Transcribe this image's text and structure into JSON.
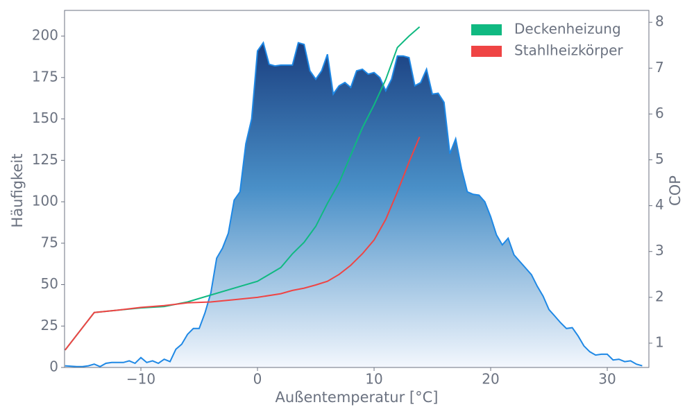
{
  "chart_data": {
    "type": "combo",
    "x_label": "Außentemperatur [°C]",
    "y_label": "Häufigkeit",
    "y2_label": "COP",
    "xlim": [
      -16.55,
      33.57
    ],
    "xticks": [
      {
        "value": -10,
        "label": "−10"
      },
      0,
      10,
      20,
      30
    ],
    "ylim": [
      0,
      215.5
    ],
    "yticks": [
      0,
      25,
      50,
      75,
      100,
      125,
      150,
      175,
      200
    ],
    "y2lim": [
      0.47,
      8.26
    ],
    "y2ticks": [
      1,
      2,
      3,
      4,
      5,
      6,
      7,
      8
    ],
    "legend": "upper right",
    "series": [
      {
        "type": "area",
        "color": "#1e88e5",
        "x": [
          -16.5,
          -15.5,
          -15,
          -14.5,
          -14,
          -13.5,
          -13,
          -12.5,
          -12,
          -11.5,
          -11,
          -10.5,
          -10,
          -9.5,
          -9,
          -8.5,
          -8,
          -7.5,
          -7,
          -6.5,
          -6,
          -5.5,
          -5,
          -4.5,
          -4,
          -3.5,
          -3,
          -2.5,
          -2,
          -1.5,
          -1,
          -0.5,
          0,
          0.5,
          1,
          1.5,
          2,
          2.5,
          3,
          3.5,
          4,
          4.5,
          5,
          5.5,
          6,
          6.5,
          7,
          7.5,
          8,
          8.5,
          9,
          9.5,
          10,
          10.5,
          11,
          11.5,
          12,
          12.5,
          13,
          13.5,
          14,
          14.5,
          15,
          15.5,
          16,
          16.5,
          17,
          17.5,
          18,
          18.5,
          19,
          19.5,
          20,
          20.5,
          21,
          21.5,
          22,
          22.5,
          23,
          23.5,
          24,
          24.5,
          25,
          25.5,
          26,
          26.5,
          27,
          27.5,
          28,
          28.5,
          29,
          29.5,
          30,
          30.5,
          31,
          31.5,
          32,
          32.5,
          33
        ],
        "values": [
          1,
          0.5,
          0.5,
          1,
          2,
          0.5,
          2.5,
          3,
          3,
          3,
          4,
          2.5,
          6,
          3,
          4,
          2.5,
          5,
          3.5,
          11,
          14,
          20,
          23.5,
          23.5,
          33,
          45,
          66,
          72,
          81,
          101,
          106,
          135,
          150,
          191,
          196,
          183,
          182,
          182.5,
          182.5,
          182.5,
          196,
          195,
          179,
          174,
          179,
          189,
          165,
          170,
          172,
          169,
          179,
          180,
          177,
          178,
          175,
          167,
          174,
          188,
          188,
          187,
          170,
          172,
          180,
          165,
          165.5,
          160,
          129,
          138,
          120,
          106,
          104.5,
          104,
          100,
          91,
          80,
          74,
          78,
          68,
          64,
          60,
          56,
          49,
          43,
          35,
          31,
          27,
          23.5,
          24,
          19,
          13,
          9.5,
          7.5,
          8,
          8,
          4.5,
          5,
          3.5,
          4,
          2,
          1
        ]
      },
      {
        "type": "line",
        "name": "Deckenheizung",
        "color": "#10b981",
        "axis": "y2",
        "x": [
          -16.5,
          -14,
          -12,
          -10,
          -8,
          -6,
          -4,
          -2,
          0,
          2,
          3,
          4,
          5,
          6,
          7,
          8,
          9,
          10,
          11,
          12,
          13,
          13.9
        ],
        "values": [
          0.85,
          1.67,
          1.72,
          1.77,
          1.8,
          1.9,
          2.05,
          2.2,
          2.35,
          2.65,
          2.95,
          3.2,
          3.55,
          4.05,
          4.5,
          5.1,
          5.7,
          6.2,
          6.75,
          7.45,
          7.7,
          7.9
        ]
      },
      {
        "type": "line",
        "name": "Stahlheizkörper",
        "color": "#ef4444",
        "axis": "y2",
        "x": [
          -16.5,
          -14,
          -12,
          -10,
          -8,
          -6,
          -4,
          -2,
          0,
          2,
          3,
          4,
          5,
          6,
          7,
          8,
          9,
          10,
          11,
          12,
          13,
          13.9
        ],
        "values": [
          0.85,
          1.67,
          1.72,
          1.78,
          1.82,
          1.88,
          1.9,
          1.95,
          2.0,
          2.08,
          2.15,
          2.2,
          2.27,
          2.35,
          2.5,
          2.7,
          2.95,
          3.25,
          3.7,
          4.3,
          4.95,
          5.5
        ]
      }
    ]
  }
}
